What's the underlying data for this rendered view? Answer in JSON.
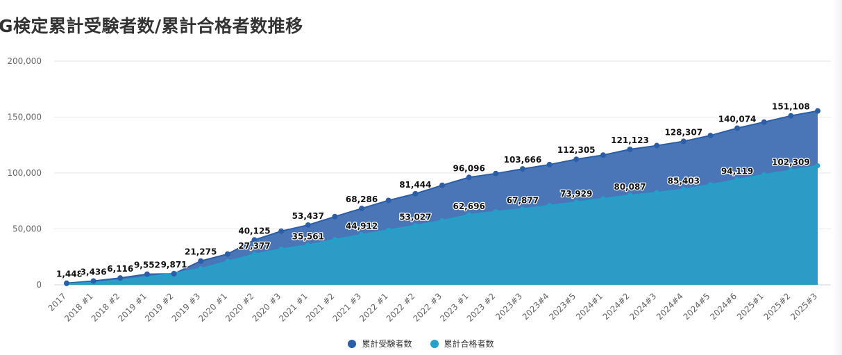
{
  "title": "G検定累計受験者数/累計合格者数推移",
  "colors": {
    "examinees": "#2a5ea8",
    "examinees_fill": "#4a76b7",
    "passers": "#22a1cb",
    "passers_fill": "#2c9bc6"
  },
  "chart_data": {
    "type": "area",
    "title": "G検定累計受験者数/累計合格者数推移",
    "ylim": [
      0,
      200000
    ],
    "yticks": [
      0,
      50000,
      100000,
      150000,
      200000
    ],
    "ytick_labels": [
      "0",
      "50,000",
      "100,000",
      "150,000",
      "200,000"
    ],
    "grid": true,
    "legend_position": "bottom",
    "categories": [
      "2017",
      "2018 #1",
      "2018 #2",
      "2019 #1",
      "2019 #2",
      "2019 #3",
      "2020 #1",
      "2020 #2",
      "2020 #3",
      "2021 #1",
      "2021 #2",
      "2021 #3",
      "2022 #1",
      "2022 #2",
      "2022 #3",
      "2023 #1",
      "2023 #2",
      "2023#3",
      "2023#4",
      "2023#5",
      "2024#1",
      "2024#2",
      "2024#3",
      "2024#4",
      "2024#5",
      "2024#6",
      "2025#1",
      "2025#2",
      "2025#3"
    ],
    "series": [
      {
        "name": "累計受験者数",
        "values": [
          1448,
          3436,
          6116,
          9552,
          9871,
          21275,
          27500,
          40125,
          48000,
          53437,
          61000,
          68286,
          75500,
          81444,
          89000,
          96096,
          99500,
          103666,
          107500,
          112305,
          116000,
          121123,
          124500,
          128307,
          133500,
          140074,
          145500,
          151108,
          155500
        ],
        "labels": [
          "1,448",
          "3,436",
          "6,116",
          "9,552",
          "9,871",
          "21,275",
          "",
          "40,125",
          "",
          "53,437",
          "",
          "68,286",
          "",
          "81,444",
          "",
          "96,096",
          "",
          "103,666",
          "",
          "112,305",
          "",
          "121,123",
          "",
          "128,307",
          "",
          "140,074",
          "",
          "151,108",
          ""
        ]
      },
      {
        "name": "累計合格者数",
        "values": [
          900,
          2200,
          4200,
          6900,
          10500,
          14500,
          21000,
          27377,
          32000,
          35561,
          40500,
          44912,
          49000,
          53027,
          57500,
          62696,
          65500,
          67877,
          71000,
          73929,
          77000,
          80087,
          82500,
          85403,
          89500,
          94119,
          98500,
          102309,
          106500
        ],
        "labels": [
          "",
          "",
          "",
          "",
          "",
          "",
          "",
          "27,377",
          "",
          "35,561",
          "",
          "44,912",
          "",
          "53,027",
          "",
          "62,696",
          "",
          "67,877",
          "",
          "73,929",
          "",
          "80,087",
          "",
          "85,403",
          "",
          "94,119",
          "",
          "102,309",
          ""
        ]
      }
    ]
  }
}
